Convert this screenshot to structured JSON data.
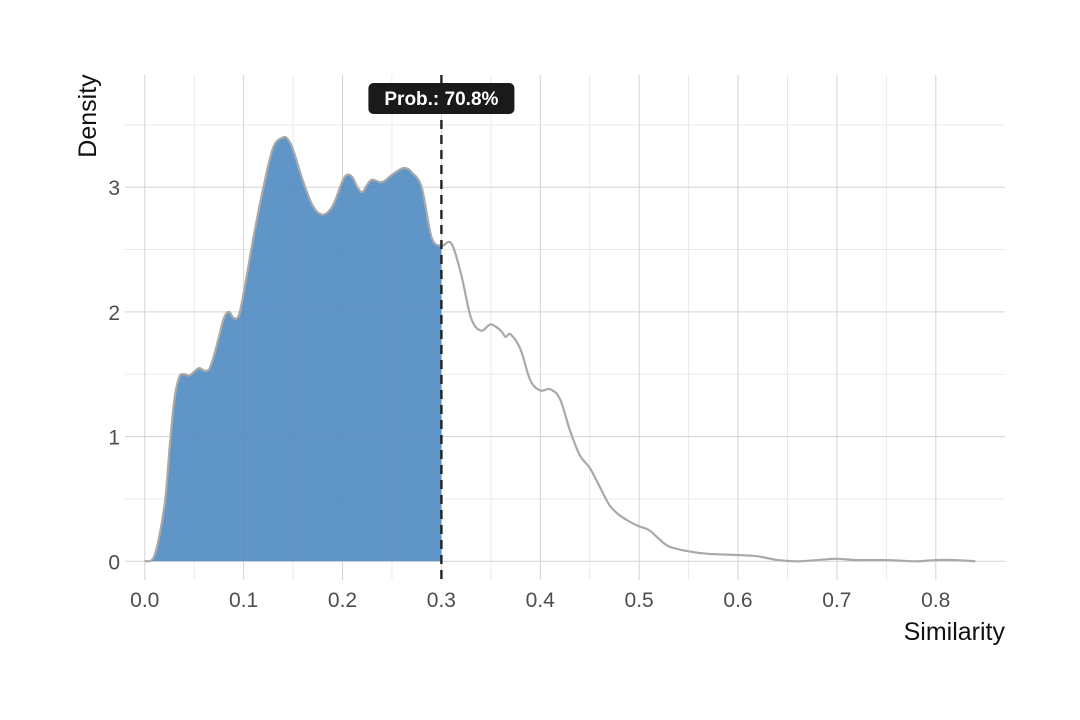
{
  "chart_data": {
    "type": "area",
    "xlabel": "Similarity",
    "ylabel": "Density",
    "xlim": [
      -0.02,
      0.87
    ],
    "ylim": [
      -0.15,
      3.9
    ],
    "x_ticks": [
      0.0,
      0.1,
      0.2,
      0.3,
      0.4,
      0.5,
      0.6,
      0.7,
      0.8
    ],
    "x_tick_labels": [
      "0.0",
      "0.1",
      "0.2",
      "0.3",
      "0.4",
      "0.5",
      "0.6",
      "0.7",
      "0.8"
    ],
    "y_ticks": [
      0,
      1,
      2,
      3
    ],
    "y_tick_labels": [
      "0",
      "1",
      "2",
      "3"
    ],
    "grid": true,
    "threshold": 0.3,
    "annotation": "Prob.: 70.8%",
    "fill_color": "#4f8ac2",
    "line_color": "#a9a9a9",
    "threshold_line_color": "#222222",
    "annotation_bg_color": "#1a1a1a",
    "series": [
      {
        "x": [
          0.0,
          0.01,
          0.02,
          0.025,
          0.03,
          0.035,
          0.04,
          0.045,
          0.05,
          0.055,
          0.06,
          0.065,
          0.07,
          0.075,
          0.08,
          0.085,
          0.09,
          0.095,
          0.1,
          0.11,
          0.12,
          0.13,
          0.14,
          0.145,
          0.15,
          0.16,
          0.17,
          0.18,
          0.19,
          0.2,
          0.205,
          0.21,
          0.215,
          0.22,
          0.225,
          0.23,
          0.24,
          0.25,
          0.26,
          0.265,
          0.27,
          0.28,
          0.29,
          0.3,
          0.31,
          0.32,
          0.33,
          0.34,
          0.35,
          0.36,
          0.365,
          0.37,
          0.38,
          0.39,
          0.4,
          0.41,
          0.42,
          0.43,
          0.44,
          0.45,
          0.46,
          0.47,
          0.48,
          0.49,
          0.5,
          0.51,
          0.52,
          0.53,
          0.55,
          0.57,
          0.6,
          0.62,
          0.64,
          0.66,
          0.68,
          0.7,
          0.72,
          0.75,
          0.78,
          0.8,
          0.82,
          0.84
        ],
        "y": [
          0.0,
          0.05,
          0.45,
          0.9,
          1.3,
          1.48,
          1.5,
          1.49,
          1.52,
          1.55,
          1.53,
          1.54,
          1.65,
          1.8,
          1.95,
          2.0,
          1.95,
          1.97,
          2.15,
          2.6,
          3.0,
          3.32,
          3.4,
          3.38,
          3.3,
          3.05,
          2.85,
          2.78,
          2.85,
          3.05,
          3.1,
          3.08,
          3.0,
          2.96,
          3.02,
          3.06,
          3.04,
          3.1,
          3.15,
          3.15,
          3.12,
          3.0,
          2.6,
          2.53,
          2.55,
          2.3,
          1.95,
          1.85,
          1.9,
          1.85,
          1.8,
          1.82,
          1.7,
          1.45,
          1.37,
          1.38,
          1.3,
          1.05,
          0.85,
          0.75,
          0.6,
          0.45,
          0.37,
          0.32,
          0.28,
          0.25,
          0.18,
          0.12,
          0.08,
          0.06,
          0.05,
          0.04,
          0.01,
          0.0,
          0.01,
          0.02,
          0.01,
          0.01,
          0.0,
          0.01,
          0.01,
          0.0
        ]
      }
    ]
  }
}
